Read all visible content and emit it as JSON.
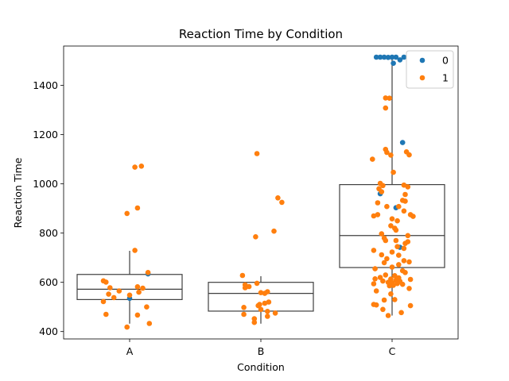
{
  "chart_data": {
    "type": "box+strip",
    "title": "Reaction Time by Condition",
    "xlabel": "Condition",
    "ylabel": "Reaction Time",
    "categories": [
      "A",
      "B",
      "C"
    ],
    "ylim": [
      370,
      1560
    ],
    "yticks": [
      400,
      600,
      800,
      1000,
      1200,
      1400
    ],
    "grid": false,
    "legend": {
      "placement": "top-right",
      "entries": [
        {
          "label": "0",
          "color": "#1f77b4"
        },
        {
          "label": "1",
          "color": "#ff7f0e"
        }
      ]
    },
    "boxes": [
      {
        "category": "A",
        "q1": 530,
        "median": 572,
        "q3": 632,
        "whisker_low": 432,
        "whisker_high": 728
      },
      {
        "category": "B",
        "q1": 483,
        "median": 555,
        "q3": 600,
        "whisker_low": 432,
        "whisker_high": 625
      },
      {
        "category": "C",
        "q1": 660,
        "median": 790,
        "q3": 997,
        "whisker_low": 465,
        "whisker_high": 1515
      }
    ],
    "series": [
      {
        "name": "0",
        "color": "#1f77b4",
        "points": [
          {
            "category": "A",
            "jitter": 0.0,
            "y": 535
          },
          {
            "category": "A",
            "jitter": 0.14,
            "y": 634
          },
          {
            "category": "C",
            "jitter": -0.12,
            "y": 1515
          },
          {
            "category": "C",
            "jitter": -0.09,
            "y": 1515
          },
          {
            "category": "C",
            "jitter": -0.06,
            "y": 1515
          },
          {
            "category": "C",
            "jitter": -0.03,
            "y": 1514
          },
          {
            "category": "C",
            "jitter": 0.0,
            "y": 1515
          },
          {
            "category": "C",
            "jitter": 0.03,
            "y": 1515
          },
          {
            "category": "C",
            "jitter": 0.06,
            "y": 1504
          },
          {
            "category": "C",
            "jitter": 0.09,
            "y": 1515
          },
          {
            "category": "C",
            "jitter": 0.01,
            "y": 1490
          },
          {
            "category": "C",
            "jitter": 0.08,
            "y": 1168
          },
          {
            "category": "C",
            "jitter": -0.09,
            "y": 960
          },
          {
            "category": "C",
            "jitter": 0.03,
            "y": 903
          },
          {
            "category": "C",
            "jitter": 0.06,
            "y": 742
          }
        ]
      },
      {
        "name": "1",
        "color": "#ff7f0e",
        "points": [
          {
            "category": "A",
            "jitter": 0.04,
            "y": 1068
          },
          {
            "category": "A",
            "jitter": 0.09,
            "y": 1072
          },
          {
            "category": "A",
            "jitter": 0.06,
            "y": 902
          },
          {
            "category": "A",
            "jitter": -0.02,
            "y": 880
          },
          {
            "category": "A",
            "jitter": 0.04,
            "y": 730
          },
          {
            "category": "A",
            "jitter": 0.14,
            "y": 640
          },
          {
            "category": "A",
            "jitter": -0.2,
            "y": 606
          },
          {
            "category": "A",
            "jitter": -0.18,
            "y": 601
          },
          {
            "category": "A",
            "jitter": 0.06,
            "y": 582
          },
          {
            "category": "A",
            "jitter": -0.15,
            "y": 578
          },
          {
            "category": "A",
            "jitter": 0.1,
            "y": 576
          },
          {
            "category": "A",
            "jitter": -0.08,
            "y": 565
          },
          {
            "category": "A",
            "jitter": 0.07,
            "y": 560
          },
          {
            "category": "A",
            "jitter": -0.16,
            "y": 552
          },
          {
            "category": "A",
            "jitter": 0.0,
            "y": 548
          },
          {
            "category": "A",
            "jitter": -0.12,
            "y": 538
          },
          {
            "category": "A",
            "jitter": -0.2,
            "y": 522
          },
          {
            "category": "A",
            "jitter": 0.13,
            "y": 500
          },
          {
            "category": "A",
            "jitter": -0.18,
            "y": 470
          },
          {
            "category": "A",
            "jitter": 0.06,
            "y": 467
          },
          {
            "category": "A",
            "jitter": 0.15,
            "y": 433
          },
          {
            "category": "A",
            "jitter": -0.02,
            "y": 418
          },
          {
            "category": "B",
            "jitter": -0.03,
            "y": 1123
          },
          {
            "category": "B",
            "jitter": 0.13,
            "y": 943
          },
          {
            "category": "B",
            "jitter": 0.16,
            "y": 925
          },
          {
            "category": "B",
            "jitter": 0.1,
            "y": 808
          },
          {
            "category": "B",
            "jitter": -0.04,
            "y": 785
          },
          {
            "category": "B",
            "jitter": -0.14,
            "y": 628
          },
          {
            "category": "B",
            "jitter": -0.03,
            "y": 596
          },
          {
            "category": "B",
            "jitter": -0.12,
            "y": 590
          },
          {
            "category": "B",
            "jitter": -0.09,
            "y": 583
          },
          {
            "category": "B",
            "jitter": -0.12,
            "y": 578
          },
          {
            "category": "B",
            "jitter": 0.05,
            "y": 562
          },
          {
            "category": "B",
            "jitter": 0.0,
            "y": 558
          },
          {
            "category": "B",
            "jitter": 0.03,
            "y": 555
          },
          {
            "category": "B",
            "jitter": 0.06,
            "y": 520
          },
          {
            "category": "B",
            "jitter": 0.03,
            "y": 515
          },
          {
            "category": "B",
            "jitter": -0.01,
            "y": 510
          },
          {
            "category": "B",
            "jitter": -0.02,
            "y": 505
          },
          {
            "category": "B",
            "jitter": -0.13,
            "y": 498
          },
          {
            "category": "B",
            "jitter": 0.0,
            "y": 490
          },
          {
            "category": "B",
            "jitter": 0.05,
            "y": 482
          },
          {
            "category": "B",
            "jitter": 0.11,
            "y": 475
          },
          {
            "category": "B",
            "jitter": -0.13,
            "y": 470
          },
          {
            "category": "B",
            "jitter": 0.05,
            "y": 462
          },
          {
            "category": "B",
            "jitter": -0.05,
            "y": 452
          },
          {
            "category": "B",
            "jitter": -0.05,
            "y": 437
          },
          {
            "category": "C",
            "jitter": -0.05,
            "y": 1349
          },
          {
            "category": "C",
            "jitter": -0.02,
            "y": 1348
          },
          {
            "category": "C",
            "jitter": -0.05,
            "y": 1308
          },
          {
            "category": "C",
            "jitter": -0.05,
            "y": 1140
          },
          {
            "category": "C",
            "jitter": -0.04,
            "y": 1128
          },
          {
            "category": "C",
            "jitter": 0.11,
            "y": 1130
          },
          {
            "category": "C",
            "jitter": -0.01,
            "y": 1117
          },
          {
            "category": "C",
            "jitter": 0.13,
            "y": 1118
          },
          {
            "category": "C",
            "jitter": -0.15,
            "y": 1100
          },
          {
            "category": "C",
            "jitter": 0.01,
            "y": 1047
          },
          {
            "category": "C",
            "jitter": -0.09,
            "y": 1002
          },
          {
            "category": "C",
            "jitter": -0.07,
            "y": 993
          },
          {
            "category": "C",
            "jitter": 0.09,
            "y": 995
          },
          {
            "category": "C",
            "jitter": -0.1,
            "y": 980
          },
          {
            "category": "C",
            "jitter": 0.12,
            "y": 988
          },
          {
            "category": "C",
            "jitter": -0.08,
            "y": 968
          },
          {
            "category": "C",
            "jitter": 0.1,
            "y": 957
          },
          {
            "category": "C",
            "jitter": 0.08,
            "y": 933
          },
          {
            "category": "C",
            "jitter": 0.1,
            "y": 930
          },
          {
            "category": "C",
            "jitter": -0.11,
            "y": 923
          },
          {
            "category": "C",
            "jitter": -0.04,
            "y": 908
          },
          {
            "category": "C",
            "jitter": 0.05,
            "y": 908
          },
          {
            "category": "C",
            "jitter": 0.09,
            "y": 890
          },
          {
            "category": "C",
            "jitter": -0.11,
            "y": 875
          },
          {
            "category": "C",
            "jitter": 0.14,
            "y": 875
          },
          {
            "category": "C",
            "jitter": -0.14,
            "y": 870
          },
          {
            "category": "C",
            "jitter": 0.16,
            "y": 868
          },
          {
            "category": "C",
            "jitter": 0.0,
            "y": 858
          },
          {
            "category": "C",
            "jitter": 0.04,
            "y": 850
          },
          {
            "category": "C",
            "jitter": -0.01,
            "y": 830
          },
          {
            "category": "C",
            "jitter": 0.02,
            "y": 820
          },
          {
            "category": "C",
            "jitter": 0.03,
            "y": 812
          },
          {
            "category": "C",
            "jitter": -0.08,
            "y": 797
          },
          {
            "category": "C",
            "jitter": 0.12,
            "y": 790
          },
          {
            "category": "C",
            "jitter": -0.06,
            "y": 780
          },
          {
            "category": "C",
            "jitter": -0.05,
            "y": 770
          },
          {
            "category": "C",
            "jitter": 0.03,
            "y": 770
          },
          {
            "category": "C",
            "jitter": 0.12,
            "y": 765
          },
          {
            "category": "C",
            "jitter": 0.1,
            "y": 758
          },
          {
            "category": "C",
            "jitter": 0.04,
            "y": 745
          },
          {
            "category": "C",
            "jitter": 0.09,
            "y": 738
          },
          {
            "category": "C",
            "jitter": -0.14,
            "y": 730
          },
          {
            "category": "C",
            "jitter": 0.0,
            "y": 723
          },
          {
            "category": "C",
            "jitter": -0.08,
            "y": 712
          },
          {
            "category": "C",
            "jitter": 0.05,
            "y": 710
          },
          {
            "category": "C",
            "jitter": -0.04,
            "y": 696
          },
          {
            "category": "C",
            "jitter": 0.09,
            "y": 688
          },
          {
            "category": "C",
            "jitter": 0.13,
            "y": 683
          },
          {
            "category": "C",
            "jitter": -0.06,
            "y": 680
          },
          {
            "category": "C",
            "jitter": 0.05,
            "y": 672
          },
          {
            "category": "C",
            "jitter": 0.0,
            "y": 662
          },
          {
            "category": "C",
            "jitter": -0.13,
            "y": 655
          },
          {
            "category": "C",
            "jitter": 0.08,
            "y": 647
          },
          {
            "category": "C",
            "jitter": 0.1,
            "y": 640
          },
          {
            "category": "C",
            "jitter": -0.05,
            "y": 630
          },
          {
            "category": "C",
            "jitter": 0.02,
            "y": 627
          },
          {
            "category": "C",
            "jitter": -0.09,
            "y": 620
          },
          {
            "category": "C",
            "jitter": 0.05,
            "y": 618
          },
          {
            "category": "C",
            "jitter": -0.13,
            "y": 614
          },
          {
            "category": "C",
            "jitter": -0.01,
            "y": 613
          },
          {
            "category": "C",
            "jitter": 0.14,
            "y": 612
          },
          {
            "category": "C",
            "jitter": 0.03,
            "y": 608
          },
          {
            "category": "C",
            "jitter": -0.07,
            "y": 605
          },
          {
            "category": "C",
            "jitter": 0.06,
            "y": 604
          },
          {
            "category": "C",
            "jitter": -0.03,
            "y": 600
          },
          {
            "category": "C",
            "jitter": 0.0,
            "y": 598
          },
          {
            "category": "C",
            "jitter": 0.04,
            "y": 595
          },
          {
            "category": "C",
            "jitter": -0.14,
            "y": 594
          },
          {
            "category": "C",
            "jitter": 0.08,
            "y": 592
          },
          {
            "category": "C",
            "jitter": 0.01,
            "y": 588
          },
          {
            "category": "C",
            "jitter": -0.02,
            "y": 586
          },
          {
            "category": "C",
            "jitter": 0.13,
            "y": 575
          },
          {
            "category": "C",
            "jitter": -0.12,
            "y": 565
          },
          {
            "category": "C",
            "jitter": -0.01,
            "y": 553
          },
          {
            "category": "C",
            "jitter": 0.02,
            "y": 530
          },
          {
            "category": "C",
            "jitter": -0.06,
            "y": 528
          },
          {
            "category": "C",
            "jitter": -0.14,
            "y": 510
          },
          {
            "category": "C",
            "jitter": -0.12,
            "y": 508
          },
          {
            "category": "C",
            "jitter": 0.14,
            "y": 505
          },
          {
            "category": "C",
            "jitter": -0.07,
            "y": 490
          },
          {
            "category": "C",
            "jitter": 0.07,
            "y": 477
          },
          {
            "category": "C",
            "jitter": -0.03,
            "y": 465
          }
        ]
      }
    ]
  }
}
